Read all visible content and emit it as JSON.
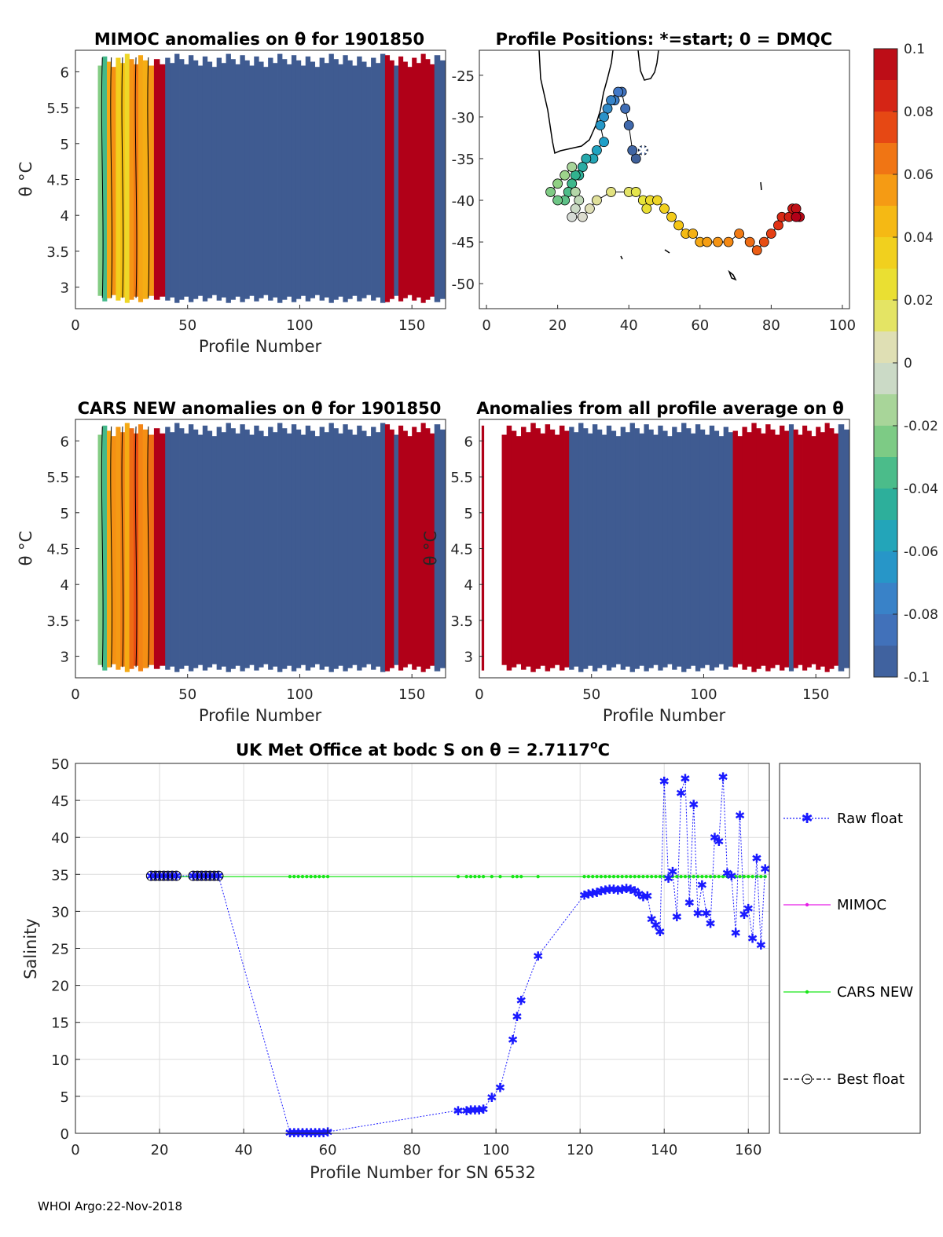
{
  "footer": "WHOI Argo:22-Nov-2018",
  "colors": {
    "blue_field": "#3f5b91",
    "red_field": "#b10018",
    "raw_float": "#1a1aff",
    "mimoc": "#e61ee6",
    "cars": "#19e619",
    "best": "#000000"
  },
  "chart_data": [
    {
      "id": "mimoc",
      "type": "heatmap",
      "title": "MIMOC anomalies on θ  for 1901850",
      "xlabel": "Profile Number",
      "ylabel": "θ °C",
      "xlim": [
        0,
        165
      ],
      "ylim": [
        2.7,
        6.3
      ],
      "xticks": [
        "0",
        "50",
        "100",
        "150"
      ],
      "yticks": [
        "3",
        "3.5",
        "4",
        "4.5",
        "5",
        "5.5",
        "6"
      ],
      "bands": [
        {
          "x0": 10,
          "x1": 14,
          "value": -0.03
        },
        {
          "x0": 14,
          "x1": 18,
          "value": 0.05
        },
        {
          "x0": 18,
          "x1": 24,
          "value": 0.04
        },
        {
          "x0": 24,
          "x1": 30,
          "value": 0.06
        },
        {
          "x0": 30,
          "x1": 35,
          "value": 0.05
        },
        {
          "x0": 35,
          "x1": 40,
          "value": 0.1
        },
        {
          "x0": 40,
          "x1": 138,
          "value": -0.1
        },
        {
          "x0": 138,
          "x1": 142,
          "value": 0.1
        },
        {
          "x0": 142,
          "x1": 144,
          "value": -0.1
        },
        {
          "x0": 144,
          "x1": 160,
          "value": 0.1
        },
        {
          "x0": 160,
          "x1": 165,
          "value": -0.1
        }
      ]
    },
    {
      "id": "positions",
      "type": "scatter",
      "title": "Profile Positions: *=start; 0 = DMQC",
      "xlim": [
        -2,
        102
      ],
      "ylim": [
        -53,
        -22
      ],
      "xticks": [
        "0",
        "20",
        "40",
        "60",
        "80",
        "100"
      ],
      "yticks": [
        "-25",
        "-30",
        "-35",
        "-40",
        "-45",
        "-50"
      ],
      "start": {
        "lon": 44,
        "lat": -34
      },
      "track": [
        [
          44,
          -34
        ],
        [
          42,
          -35
        ],
        [
          41,
          -34
        ],
        [
          40,
          -31
        ],
        [
          39,
          -29
        ],
        [
          38,
          -27
        ],
        [
          37,
          -27
        ],
        [
          36,
          -28
        ],
        [
          35,
          -28
        ],
        [
          34,
          -29
        ],
        [
          33,
          -30
        ],
        [
          32,
          -31
        ],
        [
          33,
          -33
        ],
        [
          31,
          -34
        ],
        [
          30,
          -35
        ],
        [
          28,
          -35
        ],
        [
          27,
          -36
        ],
        [
          26,
          -37
        ],
        [
          25,
          -37
        ],
        [
          24,
          -38
        ],
        [
          23,
          -39
        ],
        [
          22,
          -40
        ],
        [
          20,
          -40
        ],
        [
          18,
          -39
        ],
        [
          20,
          -38
        ],
        [
          22,
          -37
        ],
        [
          24,
          -36
        ],
        [
          25,
          -39
        ],
        [
          26,
          -40
        ],
        [
          25,
          -41
        ],
        [
          24,
          -42
        ],
        [
          27,
          -42
        ],
        [
          29,
          -41
        ],
        [
          31,
          -40
        ],
        [
          35,
          -39
        ],
        [
          40,
          -39
        ],
        [
          42,
          -39
        ],
        [
          44,
          -40
        ],
        [
          45,
          -41
        ],
        [
          46,
          -40
        ],
        [
          48,
          -40
        ],
        [
          50,
          -41
        ],
        [
          52,
          -42
        ],
        [
          54,
          -43
        ],
        [
          56,
          -44
        ],
        [
          58,
          -44
        ],
        [
          60,
          -45
        ],
        [
          62,
          -45
        ],
        [
          65,
          -45
        ],
        [
          68,
          -45
        ],
        [
          71,
          -44
        ],
        [
          74,
          -45
        ],
        [
          76,
          -46
        ],
        [
          78,
          -45
        ],
        [
          80,
          -44
        ],
        [
          82,
          -43
        ],
        [
          83,
          -42
        ],
        [
          85,
          -42
        ],
        [
          86,
          -41
        ],
        [
          87,
          -41
        ],
        [
          88,
          -42
        ],
        [
          87,
          -42
        ]
      ]
    },
    {
      "id": "cars",
      "type": "heatmap",
      "title": "CARS NEW anomalies on θ for 1901850",
      "xlabel": "Profile Number",
      "ylabel": "θ °C",
      "xlim": [
        0,
        165
      ],
      "ylim": [
        2.7,
        6.3
      ],
      "xticks": [
        "0",
        "50",
        "100",
        "150"
      ],
      "yticks": [
        "3",
        "3.5",
        "4",
        "4.5",
        "5",
        "5.5",
        "6"
      ],
      "bands": [
        {
          "x0": 10,
          "x1": 14,
          "value": -0.03
        },
        {
          "x0": 14,
          "x1": 18,
          "value": 0.05
        },
        {
          "x0": 18,
          "x1": 24,
          "value": 0.06
        },
        {
          "x0": 24,
          "x1": 30,
          "value": 0.07
        },
        {
          "x0": 30,
          "x1": 35,
          "value": 0.06
        },
        {
          "x0": 35,
          "x1": 40,
          "value": 0.1
        },
        {
          "x0": 40,
          "x1": 138,
          "value": -0.1
        },
        {
          "x0": 138,
          "x1": 142,
          "value": 0.1
        },
        {
          "x0": 142,
          "x1": 144,
          "value": -0.1
        },
        {
          "x0": 144,
          "x1": 160,
          "value": 0.1
        },
        {
          "x0": 160,
          "x1": 165,
          "value": -0.1
        }
      ]
    },
    {
      "id": "profileavg",
      "type": "heatmap",
      "title": "Anomalies from all profile average on θ",
      "xlabel": "Profile Number",
      "ylabel": "θ °C",
      "xlim": [
        0,
        165
      ],
      "ylim": [
        2.7,
        6.3
      ],
      "xticks": [
        "0",
        "50",
        "100",
        "150"
      ],
      "yticks": [
        "3",
        "3.5",
        "4",
        "4.5",
        "5",
        "5.5",
        "6"
      ],
      "bands": [
        {
          "x0": 1,
          "x1": 2,
          "value": 0.1
        },
        {
          "x0": 10,
          "x1": 40,
          "value": 0.1
        },
        {
          "x0": 40,
          "x1": 113,
          "value": -0.1
        },
        {
          "x0": 113,
          "x1": 138,
          "value": 0.1
        },
        {
          "x0": 138,
          "x1": 140,
          "value": -0.1
        },
        {
          "x0": 140,
          "x1": 160,
          "value": 0.1
        },
        {
          "x0": 160,
          "x1": 165,
          "value": -0.1
        }
      ]
    },
    {
      "id": "colorbar",
      "type": "colorbar",
      "range": [
        -0.1,
        0.1
      ],
      "ticks": [
        "0.1",
        "0.08",
        "0.06",
        "0.04",
        "0.02",
        "0",
        "-0.02",
        "-0.04",
        "-0.06",
        "-0.08",
        "-0.1"
      ]
    },
    {
      "id": "salinity",
      "type": "line",
      "title": "UK Met Office at bodc S on θ = 2.7117",
      "title_suffix": "o",
      "title_unit": "C",
      "xlabel": "Profile Number for SN 6532",
      "ylabel": "Salinity",
      "xlim": [
        0,
        165
      ],
      "ylim": [
        0,
        50
      ],
      "xticks": [
        "0",
        "20",
        "40",
        "60",
        "80",
        "100",
        "120",
        "140",
        "160"
      ],
      "yticks": [
        "0",
        "5",
        "10",
        "15",
        "20",
        "25",
        "30",
        "35",
        "40",
        "45",
        "50"
      ],
      "legend": [
        "Raw float",
        "MIMOC",
        "CARS NEW",
        "Best float"
      ],
      "series": [
        {
          "name": "Raw float",
          "points": [
            [
              18,
              34.8
            ],
            [
              19,
              34.8
            ],
            [
              20,
              34.8
            ],
            [
              21,
              34.8
            ],
            [
              22,
              34.8
            ],
            [
              23,
              34.8
            ],
            [
              24,
              34.8
            ],
            [
              28,
              34.8
            ],
            [
              29,
              34.8
            ],
            [
              30,
              34.8
            ],
            [
              31,
              34.8
            ],
            [
              32,
              34.8
            ],
            [
              33,
              34.8
            ],
            [
              34,
              34.8
            ],
            [
              51,
              0.1
            ],
            [
              52,
              0.1
            ],
            [
              53,
              0.1
            ],
            [
              54,
              0.1
            ],
            [
              55,
              0.1
            ],
            [
              56,
              0.1
            ],
            [
              57,
              0.1
            ],
            [
              58,
              0.1
            ],
            [
              59,
              0.1
            ],
            [
              60,
              0.2
            ],
            [
              91,
              3.1
            ],
            [
              93,
              3.1
            ],
            [
              94,
              3.2
            ],
            [
              95,
              3.2
            ],
            [
              96,
              3.2
            ],
            [
              97,
              3.3
            ],
            [
              99,
              4.9
            ],
            [
              101,
              6.2
            ],
            [
              104,
              12.7
            ],
            [
              105,
              15.8
            ],
            [
              106,
              18.0
            ],
            [
              110,
              24.0
            ],
            [
              121,
              32.2
            ],
            [
              122,
              32.4
            ],
            [
              123,
              32.5
            ],
            [
              124,
              32.6
            ],
            [
              125,
              32.8
            ],
            [
              126,
              32.9
            ],
            [
              127,
              33.0
            ],
            [
              128,
              33.0
            ],
            [
              129,
              32.9
            ],
            [
              130,
              33.0
            ],
            [
              131,
              33.1
            ],
            [
              132,
              33.0
            ],
            [
              133,
              32.8
            ],
            [
              134,
              32.4
            ],
            [
              135,
              32.0
            ],
            [
              136,
              32.1
            ],
            [
              137,
              29.0
            ],
            [
              138,
              28.2
            ],
            [
              139,
              27.3
            ],
            [
              140,
              47.6
            ],
            [
              141,
              34.5
            ],
            [
              142,
              35.4
            ],
            [
              143,
              29.3
            ],
            [
              144,
              46.0
            ],
            [
              145,
              48.0
            ],
            [
              146,
              31.2
            ],
            [
              147,
              44.5
            ],
            [
              148,
              29.8
            ],
            [
              149,
              33.6
            ],
            [
              150,
              29.8
            ],
            [
              151,
              28.4
            ],
            [
              152,
              40.0
            ],
            [
              153,
              39.5
            ],
            [
              154,
              48.2
            ],
            [
              155,
              35.2
            ],
            [
              156,
              34.8
            ],
            [
              157,
              27.1
            ],
            [
              158,
              43.0
            ],
            [
              159,
              29.6
            ],
            [
              160,
              30.4
            ],
            [
              161,
              26.4
            ],
            [
              162,
              37.2
            ],
            [
              163,
              25.5
            ],
            [
              164,
              35.8
            ]
          ]
        },
        {
          "name": "CARS NEW",
          "xs": [
            18,
            19,
            20,
            21,
            22,
            23,
            24,
            28,
            29,
            30,
            31,
            32,
            33,
            34,
            51,
            52,
            53,
            54,
            55,
            56,
            57,
            58,
            59,
            60,
            91,
            93,
            94,
            95,
            96,
            97,
            99,
            101,
            104,
            105,
            106,
            110,
            121,
            122,
            123,
            124,
            125,
            126,
            127,
            128,
            129,
            130,
            131,
            132,
            133,
            134,
            135,
            136,
            137,
            138,
            139,
            140,
            141,
            142,
            143,
            144,
            145,
            146,
            147,
            148,
            149,
            150,
            151,
            152,
            153,
            154,
            155,
            156,
            157,
            158,
            159,
            160,
            161,
            162,
            163,
            164
          ],
          "value": 34.7
        },
        {
          "name": "Best float",
          "xs": [
            18,
            19,
            20,
            21,
            22,
            23,
            24,
            28,
            29,
            30,
            31,
            32,
            33,
            34
          ],
          "value": 34.8
        }
      ]
    }
  ]
}
